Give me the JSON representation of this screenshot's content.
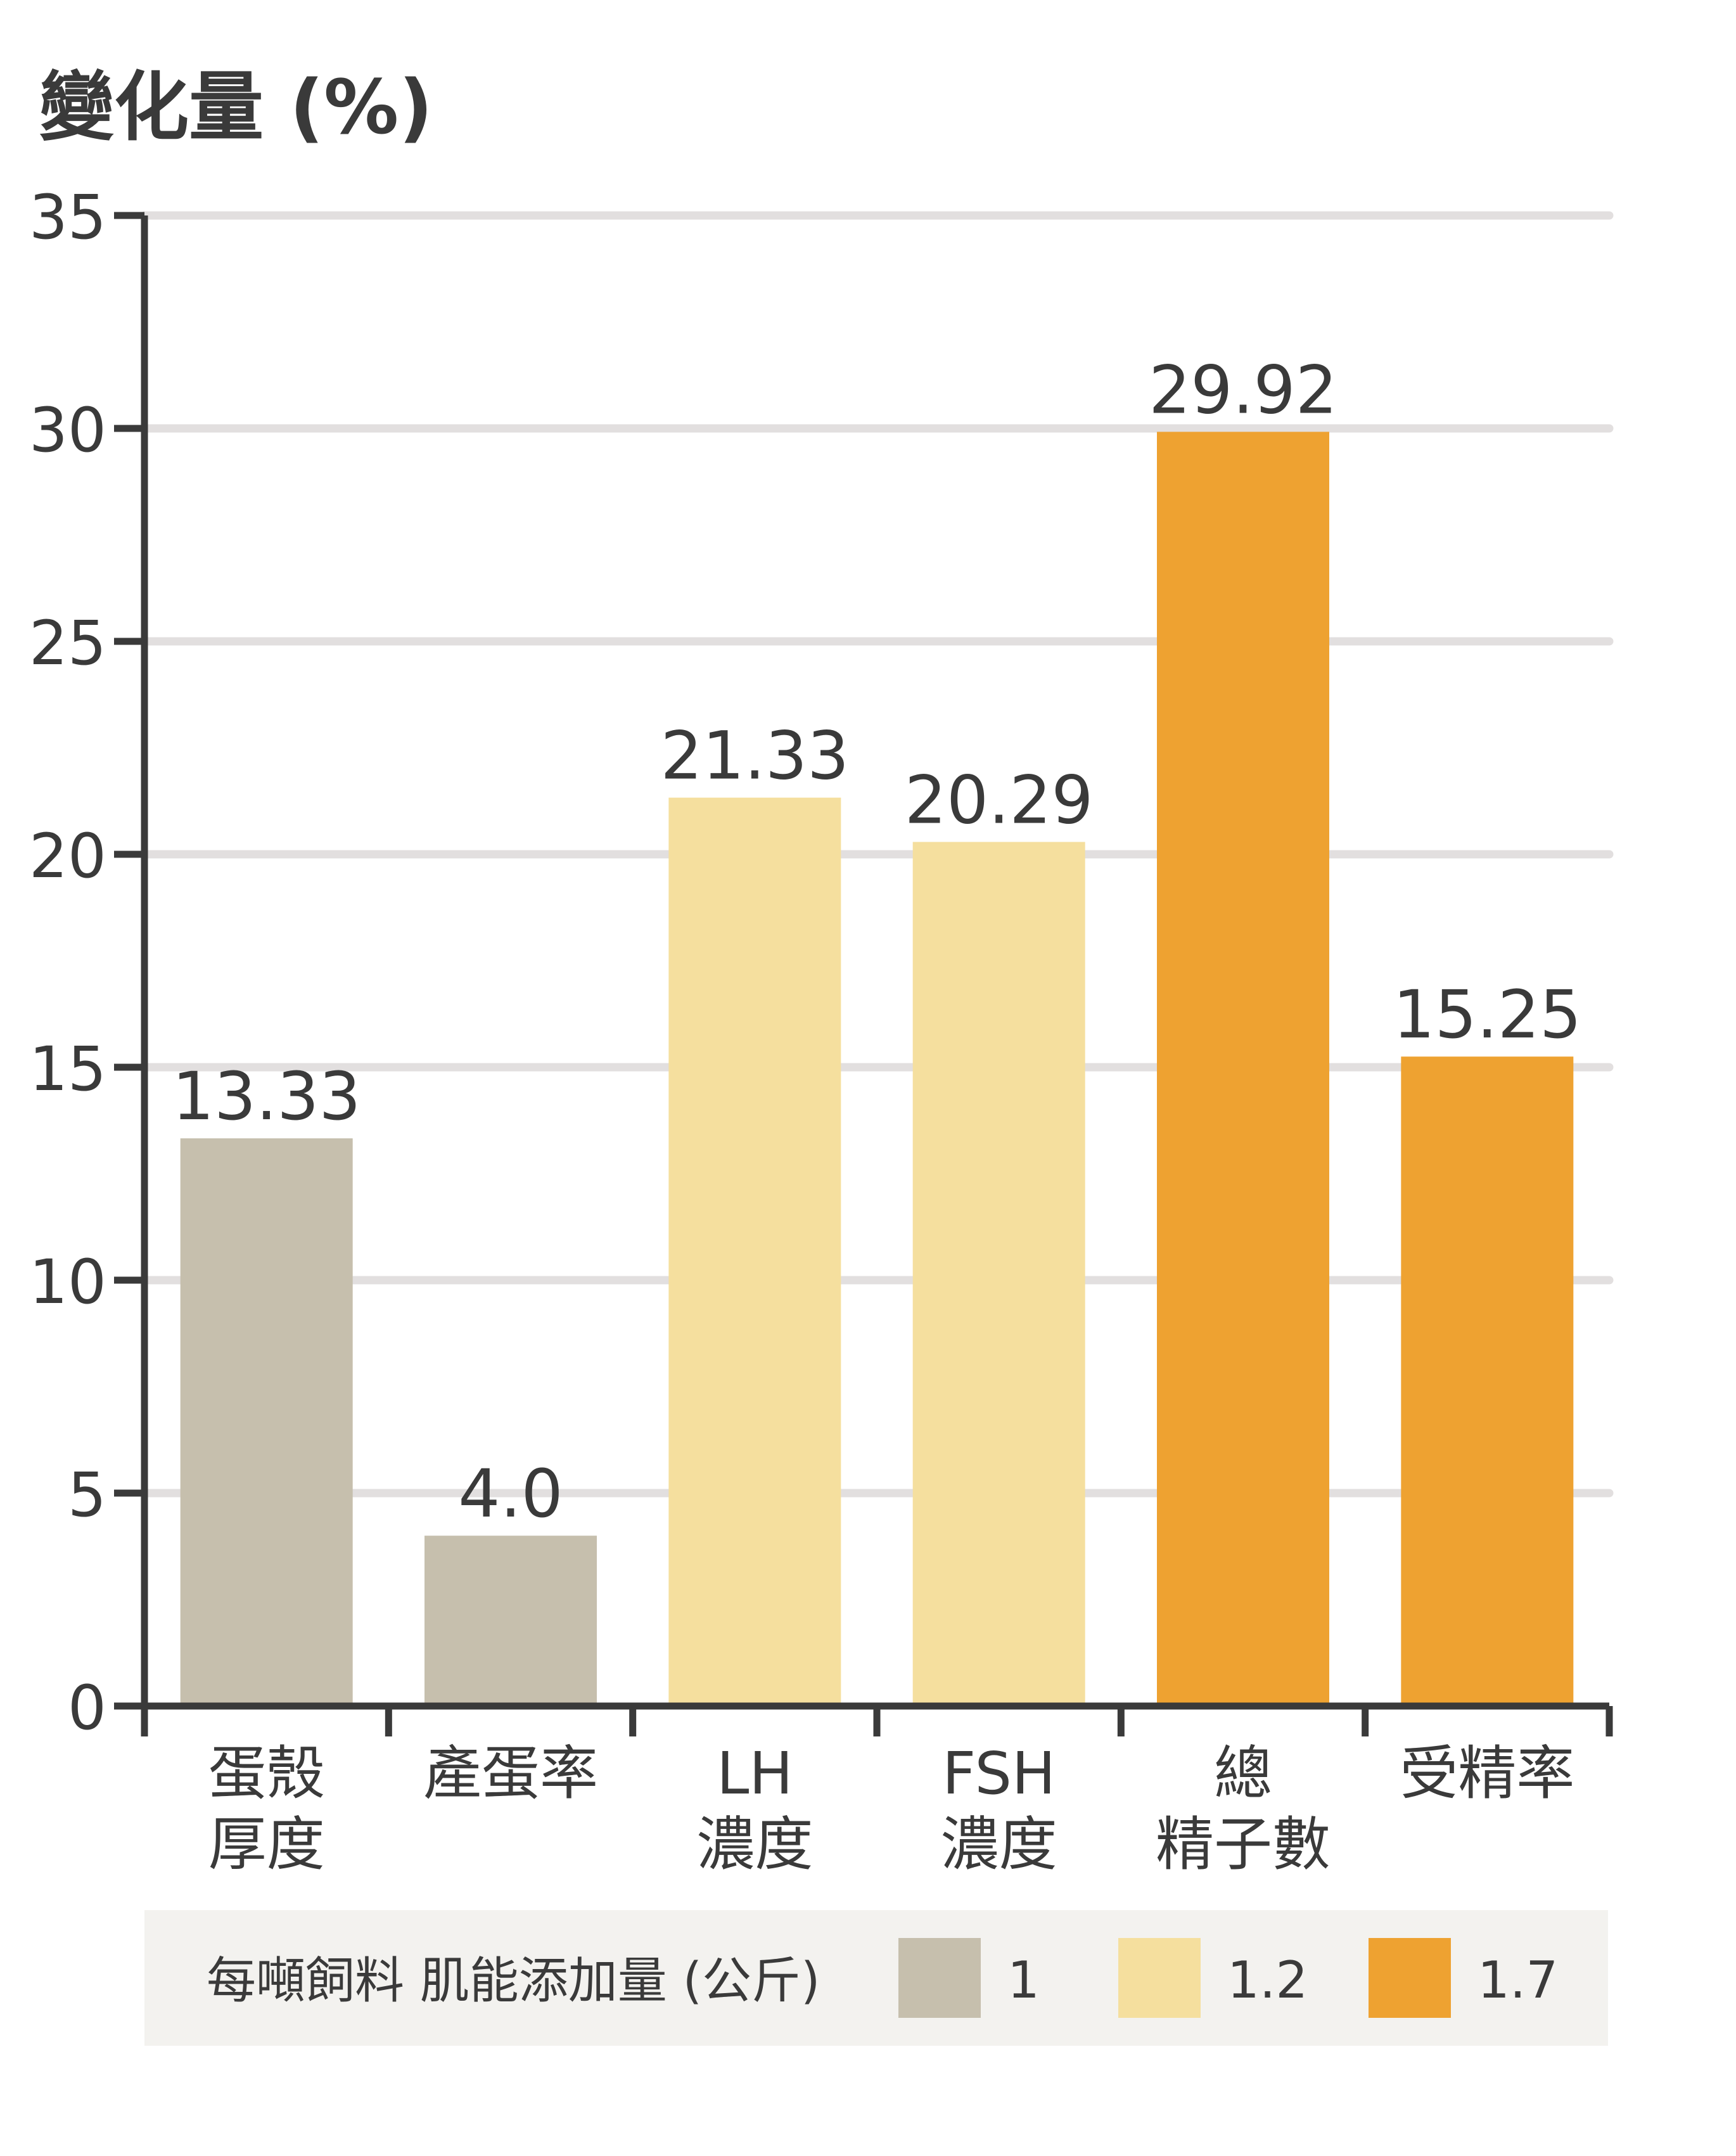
{
  "chart_data": {
    "type": "bar",
    "ylabel": "變化量 (%)",
    "ylim": [
      0,
      35
    ],
    "yticks": [
      0,
      5,
      10,
      15,
      20,
      25,
      30,
      35
    ],
    "grid": true,
    "categories": [
      {
        "lines": [
          "蛋殼",
          "厚度"
        ]
      },
      {
        "lines": [
          "產蛋率"
        ]
      },
      {
        "lines": [
          "LH",
          "濃度"
        ]
      },
      {
        "lines": [
          "FSH",
          "濃度"
        ]
      },
      {
        "lines": [
          "總",
          "精子數"
        ]
      },
      {
        "lines": [
          "受精率"
        ]
      }
    ],
    "values": [
      13.33,
      4.0,
      21.33,
      20.29,
      29.92,
      15.25
    ],
    "value_labels": [
      "13.33",
      "4.0",
      "21.33",
      "20.29",
      "29.92",
      "15.25"
    ],
    "groups": [
      "1",
      "1",
      "1.2",
      "1.2",
      "1.7",
      "1.7"
    ],
    "legend": {
      "title": "每噸飼料 肌能添加量 (公斤)",
      "position": "bottom",
      "entries": [
        {
          "label": "1",
          "color": "#c6bfad"
        },
        {
          "label": "1.2",
          "color": "#f5df9e"
        },
        {
          "label": "1.7",
          "color": "#eea231"
        }
      ]
    },
    "colors": {
      "axis": "#3a3a3a",
      "grid": "#e2dfdf",
      "legend_bg": "#f3f2ef"
    }
  }
}
